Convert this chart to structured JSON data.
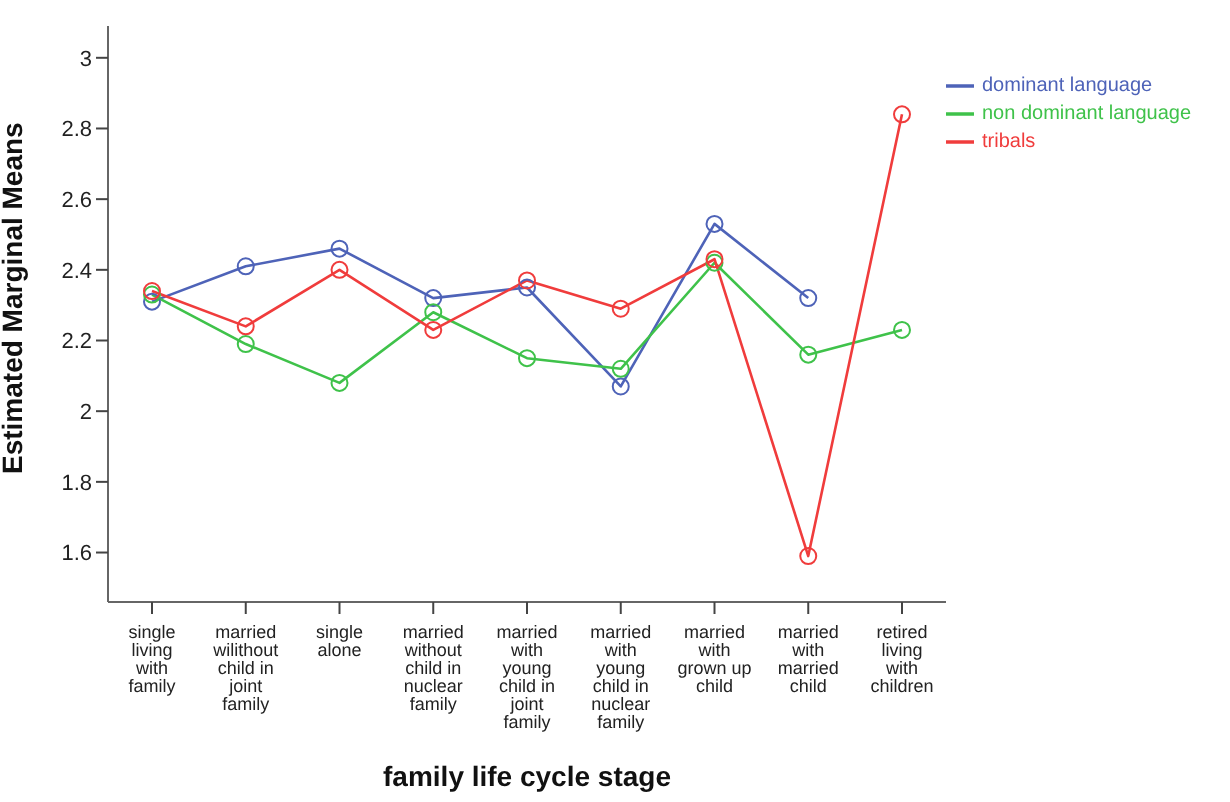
{
  "chart_data": {
    "type": "line",
    "xlabel": "family life cycle stage",
    "ylabel": "Estimated Marginal Means",
    "categories": [
      "single living with family",
      "married wilithout child in joint family",
      "single alone",
      "married without child in nuclear family",
      "married with young child in joint family",
      "married with young child in nuclear family",
      "married with grown up child",
      "married with married child",
      "retired living with children"
    ],
    "series": [
      {
        "name": "dominant language",
        "color": "#4e63b8",
        "values": [
          2.31,
          2.41,
          2.46,
          2.32,
          2.35,
          2.07,
          2.53,
          2.32,
          null
        ]
      },
      {
        "name": "non dominant language",
        "color": "#3fc24a",
        "values": [
          2.33,
          2.19,
          2.08,
          2.28,
          2.15,
          2.12,
          2.42,
          2.16,
          2.23
        ]
      },
      {
        "name": "tribals",
        "color": "#f03c3c",
        "values": [
          2.34,
          2.24,
          2.4,
          2.23,
          2.37,
          2.29,
          2.43,
          1.59,
          2.84
        ]
      }
    ],
    "ylim": [
      1.46,
      3.09
    ],
    "yticks": [
      1.6,
      1.8,
      2,
      2.2,
      2.4,
      2.6,
      2.8,
      3
    ],
    "grid": false,
    "legend": "top right",
    "marker": "circle",
    "line_style": "solid"
  }
}
